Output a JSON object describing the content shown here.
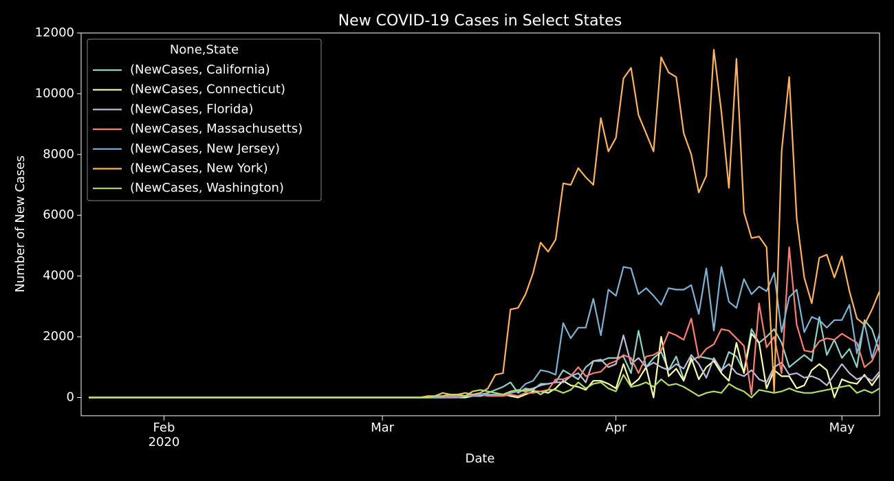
{
  "chart_data": {
    "type": "line",
    "title": "New COVID-19 Cases in Select States",
    "x_label": "Date",
    "y_label": "Number of New Cases",
    "legend_title": "None,State",
    "legend": "upper left",
    "x": [
      0,
      1,
      2,
      3,
      4,
      5,
      6,
      7,
      8,
      9,
      10,
      11,
      12,
      13,
      14,
      15,
      16,
      17,
      18,
      19,
      20,
      21,
      22,
      23,
      24,
      25,
      26,
      27,
      28,
      29,
      30,
      31,
      32,
      33,
      34,
      35,
      36,
      37,
      38,
      39,
      40,
      41,
      42,
      43,
      44,
      45,
      46,
      47,
      48,
      49,
      50,
      51,
      52,
      53,
      54,
      55,
      56,
      57,
      58,
      59,
      60,
      61,
      62,
      63,
      64,
      65,
      66,
      67,
      68,
      69,
      70,
      71,
      72,
      73,
      74,
      75,
      76,
      77,
      78,
      79,
      80,
      81,
      82,
      83,
      84,
      85,
      86,
      87,
      88,
      89,
      90,
      91,
      92,
      93,
      94,
      95,
      96,
      97,
      98,
      99,
      100,
      101,
      102,
      103,
      104,
      105
    ],
    "xlim": [
      -1,
      105
    ],
    "xticks": [
      {
        "value": 10,
        "label": "Feb"
      },
      {
        "value": 39,
        "label": "Mar"
      },
      {
        "value": 70,
        "label": "Apr"
      },
      {
        "value": 100,
        "label": "May"
      }
    ],
    "year_label": "2020",
    "ylim": [
      -600,
      12000
    ],
    "yticks": [
      0,
      2000,
      4000,
      6000,
      8000,
      10000,
      12000
    ],
    "series": [
      {
        "name": "(NewCases, California)",
        "color": "#8dd3c7",
        "values": [
          0,
          0,
          0,
          0,
          0,
          0,
          0,
          0,
          0,
          0,
          0,
          0,
          0,
          0,
          0,
          0,
          0,
          0,
          0,
          0,
          0,
          0,
          0,
          0,
          0,
          0,
          0,
          0,
          0,
          0,
          0,
          0,
          0,
          0,
          0,
          0,
          0,
          0,
          0,
          0,
          0,
          0,
          0,
          0,
          0,
          0,
          0,
          0,
          50,
          50,
          50,
          100,
          100,
          150,
          250,
          350,
          500,
          150,
          300,
          250,
          450,
          450,
          500,
          900,
          750,
          600,
          1000,
          1200,
          1200,
          1300,
          1300,
          1350,
          800,
          2200,
          1000,
          1300,
          1500,
          900,
          1350,
          600,
          1200,
          1350,
          1300,
          1250,
          850,
          1500,
          1350,
          850,
          2250,
          1800,
          2000,
          2250,
          1800,
          1000,
          1200,
          1400,
          1200,
          2650,
          1400,
          1900,
          1300,
          1600,
          1000,
          2550,
          2250,
          1500
        ]
      },
      {
        "name": "(NewCases, Connecticut)",
        "color": "#feffb3",
        "values": [
          0,
          0,
          0,
          0,
          0,
          0,
          0,
          0,
          0,
          0,
          0,
          0,
          0,
          0,
          0,
          0,
          0,
          0,
          0,
          0,
          0,
          0,
          0,
          0,
          0,
          0,
          0,
          0,
          0,
          0,
          0,
          0,
          0,
          0,
          0,
          0,
          0,
          0,
          0,
          0,
          0,
          0,
          0,
          0,
          0,
          0,
          0,
          0,
          0,
          0,
          0,
          50,
          50,
          100,
          100,
          100,
          50,
          0,
          100,
          200,
          200,
          150,
          300,
          550,
          400,
          350,
          250,
          550,
          550,
          450,
          300,
          1100,
          400,
          600,
          1000,
          0,
          2000,
          700,
          950,
          550,
          1300,
          600,
          1000,
          1200,
          800,
          550,
          1800,
          800,
          2100,
          1800,
          300,
          900,
          700,
          700,
          300,
          400,
          900,
          1100,
          900,
          0,
          600,
          500,
          450,
          750,
          400,
          750
        ]
      },
      {
        "name": "(NewCases, Florida)",
        "color": "#bfbbd9",
        "values": [
          0,
          0,
          0,
          0,
          0,
          0,
          0,
          0,
          0,
          0,
          0,
          0,
          0,
          0,
          0,
          0,
          0,
          0,
          0,
          0,
          0,
          0,
          0,
          0,
          0,
          0,
          0,
          0,
          0,
          0,
          0,
          0,
          0,
          0,
          0,
          0,
          0,
          0,
          0,
          0,
          0,
          0,
          0,
          0,
          0,
          0,
          0,
          0,
          0,
          0,
          50,
          50,
          50,
          100,
          100,
          100,
          150,
          200,
          250,
          300,
          400,
          450,
          500,
          500,
          700,
          800,
          500,
          1200,
          1250,
          1000,
          1100,
          2050,
          1100,
          1300,
          1000,
          1150,
          1000,
          900,
          1100,
          950,
          1400,
          1100,
          650,
          1300,
          900,
          1100,
          800,
          700,
          900,
          600,
          500,
          1000,
          1150,
          750,
          800,
          650,
          700,
          600,
          400,
          750,
          1100,
          800,
          600,
          700,
          550,
          850
        ]
      },
      {
        "name": "(NewCases, Massachusetts)",
        "color": "#fa8174",
        "values": [
          0,
          0,
          0,
          0,
          0,
          0,
          0,
          0,
          0,
          0,
          0,
          0,
          0,
          0,
          0,
          0,
          0,
          0,
          0,
          0,
          0,
          0,
          0,
          0,
          0,
          0,
          0,
          0,
          0,
          0,
          0,
          0,
          0,
          0,
          0,
          0,
          0,
          0,
          0,
          0,
          0,
          0,
          0,
          0,
          0,
          0,
          0,
          0,
          50,
          50,
          50,
          100,
          100,
          50,
          50,
          50,
          100,
          50,
          150,
          150,
          200,
          250,
          600,
          600,
          700,
          1000,
          700,
          800,
          850,
          1100,
          1200,
          1400,
          1300,
          800,
          1350,
          1400,
          1550,
          2150,
          2050,
          1900,
          2600,
          1300,
          1600,
          1750,
          2250,
          2200,
          1950,
          1700,
          100,
          3100,
          1650,
          2000,
          800,
          4950,
          2400,
          1550,
          1500,
          1850,
          1950,
          1900,
          2100,
          1950,
          1800,
          1000,
          1200,
          1750
        ]
      },
      {
        "name": "(NewCases, New Jersey)",
        "color": "#81b1d2",
        "values": [
          0,
          0,
          0,
          0,
          0,
          0,
          0,
          0,
          0,
          0,
          0,
          0,
          0,
          0,
          0,
          0,
          0,
          0,
          0,
          0,
          0,
          0,
          0,
          0,
          0,
          0,
          0,
          0,
          0,
          0,
          0,
          0,
          0,
          0,
          0,
          0,
          0,
          0,
          0,
          0,
          0,
          0,
          0,
          0,
          0,
          0,
          0,
          0,
          0,
          0,
          50,
          50,
          100,
          100,
          100,
          100,
          150,
          200,
          450,
          550,
          900,
          850,
          750,
          2450,
          1950,
          2300,
          2300,
          3250,
          2050,
          3550,
          3350,
          4300,
          4250,
          3400,
          3600,
          3350,
          3050,
          3600,
          3550,
          3550,
          3700,
          2750,
          4250,
          2200,
          4300,
          3150,
          2950,
          3900,
          3400,
          3650,
          3500,
          4100,
          2150,
          3300,
          3550,
          2150,
          2650,
          2550,
          2300,
          2550,
          2550,
          3050,
          1450,
          2450,
          1300,
          2100
        ]
      },
      {
        "name": "(NewCases, New York)",
        "color": "#fdb462",
        "values": [
          0,
          0,
          0,
          0,
          0,
          0,
          0,
          0,
          0,
          0,
          0,
          0,
          0,
          0,
          0,
          0,
          0,
          0,
          0,
          0,
          0,
          0,
          0,
          0,
          0,
          0,
          0,
          0,
          0,
          0,
          0,
          0,
          0,
          0,
          0,
          0,
          0,
          0,
          0,
          0,
          0,
          0,
          0,
          0,
          0,
          50,
          50,
          50,
          100,
          100,
          150,
          100,
          150,
          300,
          750,
          800,
          2900,
          2950,
          3400,
          4100,
          5100,
          4800,
          5200,
          7050,
          7000,
          7550,
          7250,
          7000,
          9200,
          8100,
          8550,
          10500,
          10850,
          9300,
          8700,
          8100,
          11200,
          10700,
          10550,
          8700,
          8000,
          6750,
          7300,
          11450,
          9400,
          6900,
          11150,
          6100,
          5250,
          5300,
          4950,
          200,
          8100,
          10550,
          5900,
          3950,
          3100,
          4600,
          4700,
          3950,
          4650,
          3500,
          2600,
          2400,
          2900,
          3500
        ]
      },
      {
        "name": "(NewCases, Washington)",
        "color": "#b3de69",
        "values": [
          0,
          0,
          0,
          0,
          0,
          0,
          0,
          0,
          0,
          0,
          0,
          0,
          0,
          0,
          0,
          0,
          0,
          0,
          0,
          0,
          0,
          0,
          0,
          0,
          0,
          0,
          0,
          0,
          0,
          0,
          0,
          0,
          0,
          0,
          0,
          0,
          0,
          0,
          0,
          0,
          0,
          0,
          0,
          0,
          0,
          0,
          50,
          150,
          100,
          100,
          50,
          200,
          250,
          200,
          150,
          100,
          200,
          250,
          200,
          250,
          100,
          250,
          250,
          150,
          250,
          500,
          300,
          450,
          500,
          300,
          200,
          750,
          350,
          400,
          500,
          350,
          600,
          400,
          450,
          350,
          200,
          50,
          150,
          200,
          150,
          450,
          300,
          200,
          0,
          250,
          200,
          150,
          200,
          300,
          200,
          150,
          150,
          200,
          250,
          300,
          350,
          400,
          150,
          250,
          150,
          300
        ]
      }
    ]
  }
}
